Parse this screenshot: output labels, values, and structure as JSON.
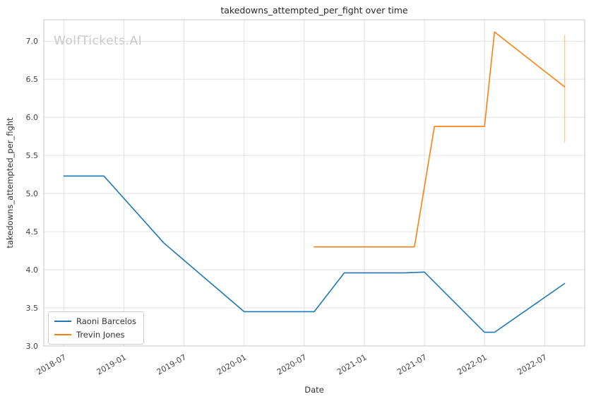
{
  "watermark": {
    "text": "WolfTickets.AI"
  },
  "chart_data": {
    "type": "line",
    "title": "takedowns_attempted_per_fight over time",
    "xlabel": "Date",
    "ylabel": "takedowns_attempted_per_fight",
    "grid": true,
    "legend_position": "lower left",
    "x_tick_labels": [
      "2018-07",
      "2019-01",
      "2019-07",
      "2020-01",
      "2020-07",
      "2021-01",
      "2021-07",
      "2022-01",
      "2022-07"
    ],
    "y_ticks": [
      3.0,
      3.5,
      4.0,
      4.5,
      5.0,
      5.5,
      6.0,
      6.5,
      7.0
    ],
    "xlim": [
      "2018-05",
      "2022-11"
    ],
    "ylim": [
      3.0,
      7.28
    ],
    "colors": {
      "grid": "#e2e2e2",
      "spine": "#c4c4c4",
      "tick_text": "#444444"
    },
    "series": [
      {
        "name": "Raoni Barcelos",
        "color": "#1f77b4",
        "points": [
          [
            "2018-07",
            5.23
          ],
          [
            "2018-11",
            5.23
          ],
          [
            "2019-05",
            4.35
          ],
          [
            "2020-01",
            3.45
          ],
          [
            "2020-08",
            3.45
          ],
          [
            "2020-11",
            3.96
          ],
          [
            "2021-05",
            3.96
          ],
          [
            "2021-07",
            3.97
          ],
          [
            "2022-01",
            3.18
          ],
          [
            "2022-02",
            3.18
          ],
          [
            "2022-09",
            3.82
          ]
        ]
      },
      {
        "name": "Trevin Jones",
        "color": "#ff7f0e",
        "points": [
          [
            "2020-08",
            4.3
          ],
          [
            "2021-06",
            4.3
          ],
          [
            "2021-08",
            5.88
          ],
          [
            "2022-01",
            5.88
          ],
          [
            "2022-02",
            7.12
          ],
          [
            "2022-09",
            6.4
          ]
        ]
      }
    ],
    "error_bar": {
      "x": "2022-09",
      "y_low": 5.67,
      "y_high": 7.08,
      "color": "#ff7f0e",
      "opacity": 0.45
    }
  }
}
